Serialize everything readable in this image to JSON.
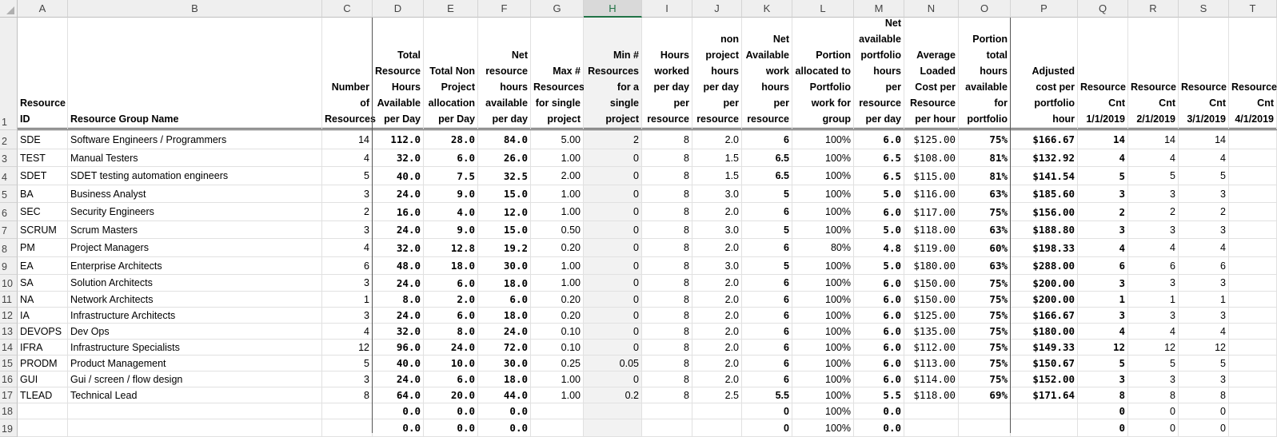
{
  "sheet": {
    "columns": [
      "A",
      "B",
      "C",
      "D",
      "E",
      "F",
      "G",
      "H",
      "I",
      "J",
      "K",
      "L",
      "M",
      "N",
      "O",
      "P",
      "Q",
      "R",
      "S",
      "T"
    ],
    "selected_column": "H",
    "header_row_number": "1",
    "headers": [
      "Resource ID",
      "Resource Group  Name",
      "Number of Resources",
      "Total Resource Hours Available per Day",
      "Total Non Project allocation per Day",
      "Net resource hours available per day",
      "Max # Resources for single project",
      "Min # Resources for a single project",
      "Hours worked per day per resource",
      "non project hours per day per resource",
      "Net Available work hours per resource",
      "Portion allocated to Portfolio work for group",
      "Net available portfolio hours per resource per day",
      "Average Loaded Cost per Resource per hour",
      "Portion total hours available for portfolio",
      "Adjusted cost per portfolio hour",
      "Resource Cnt 1/1/2019",
      "Resource Cnt 2/1/2019",
      "Resource Cnt 3/1/2019",
      "Resource Cnt 4/1/2019"
    ],
    "rows": [
      {
        "n": "2",
        "c": [
          "SDE",
          "Software Engineers / Programmers",
          "14",
          "112.0",
          "28.0",
          "84.0",
          "5.00",
          "2",
          "8",
          "2.0",
          "6",
          "100%",
          "6.0",
          "$125.00",
          "75%",
          "$166.67",
          "14",
          "14",
          "14",
          ""
        ]
      },
      {
        "n": "3",
        "c": [
          "TEST",
          "Manual Testers",
          "4",
          "32.0",
          "6.0",
          "26.0",
          "1.00",
          "0",
          "8",
          "1.5",
          "6.5",
          "100%",
          "6.5",
          "$108.00",
          "81%",
          "$132.92",
          "4",
          "4",
          "4",
          ""
        ]
      },
      {
        "n": "4",
        "c": [
          "SDET",
          "SDET testing automation engineers",
          "5",
          "40.0",
          "7.5",
          "32.5",
          "2.00",
          "0",
          "8",
          "1.5",
          "6.5",
          "100%",
          "6.5",
          "$115.00",
          "81%",
          "$141.54",
          "5",
          "5",
          "5",
          ""
        ]
      },
      {
        "n": "5",
        "c": [
          "BA",
          "Business Analyst",
          "3",
          "24.0",
          "9.0",
          "15.0",
          "1.00",
          "0",
          "8",
          "3.0",
          "5",
          "100%",
          "5.0",
          "$116.00",
          "63%",
          "$185.60",
          "3",
          "3",
          "3",
          ""
        ]
      },
      {
        "n": "6",
        "c": [
          "SEC",
          "Security Engineers",
          "2",
          "16.0",
          "4.0",
          "12.0",
          "1.00",
          "0",
          "8",
          "2.0",
          "6",
          "100%",
          "6.0",
          "$117.00",
          "75%",
          "$156.00",
          "2",
          "2",
          "2",
          ""
        ]
      },
      {
        "n": "7",
        "c": [
          "SCRUM",
          "Scrum Masters",
          "3",
          "24.0",
          "9.0",
          "15.0",
          "0.50",
          "0",
          "8",
          "3.0",
          "5",
          "100%",
          "5.0",
          "$118.00",
          "63%",
          "$188.80",
          "3",
          "3",
          "3",
          ""
        ]
      },
      {
        "n": "8",
        "c": [
          "PM",
          "Project Managers",
          "4",
          "32.0",
          "12.8",
          "19.2",
          "0.20",
          "0",
          "8",
          "2.0",
          "6",
          "80%",
          "4.8",
          "$119.00",
          "60%",
          "$198.33",
          "4",
          "4",
          "4",
          ""
        ]
      },
      {
        "n": "9",
        "c": [
          "EA",
          "Enterprise Architects",
          "6",
          "48.0",
          "18.0",
          "30.0",
          "1.00",
          "0",
          "8",
          "3.0",
          "5",
          "100%",
          "5.0",
          "$180.00",
          "63%",
          "$288.00",
          "6",
          "6",
          "6",
          ""
        ]
      },
      {
        "n": "10",
        "c": [
          "SA",
          "Solution Architects",
          "3",
          "24.0",
          "6.0",
          "18.0",
          "1.00",
          "0",
          "8",
          "2.0",
          "6",
          "100%",
          "6.0",
          "$150.00",
          "75%",
          "$200.00",
          "3",
          "3",
          "3",
          ""
        ]
      },
      {
        "n": "11",
        "c": [
          "NA",
          "Network Architects",
          "1",
          "8.0",
          "2.0",
          "6.0",
          "0.20",
          "0",
          "8",
          "2.0",
          "6",
          "100%",
          "6.0",
          "$150.00",
          "75%",
          "$200.00",
          "1",
          "1",
          "1",
          ""
        ]
      },
      {
        "n": "12",
        "c": [
          "IA",
          "Infrastructure Architects",
          "3",
          "24.0",
          "6.0",
          "18.0",
          "0.20",
          "0",
          "8",
          "2.0",
          "6",
          "100%",
          "6.0",
          "$125.00",
          "75%",
          "$166.67",
          "3",
          "3",
          "3",
          ""
        ]
      },
      {
        "n": "13",
        "c": [
          "DEVOPS",
          "Dev Ops",
          "4",
          "32.0",
          "8.0",
          "24.0",
          "0.10",
          "0",
          "8",
          "2.0",
          "6",
          "100%",
          "6.0",
          "$135.00",
          "75%",
          "$180.00",
          "4",
          "4",
          "4",
          ""
        ]
      },
      {
        "n": "14",
        "c": [
          "IFRA",
          "Infrastructure Specialists",
          "12",
          "96.0",
          "24.0",
          "72.0",
          "0.10",
          "0",
          "8",
          "2.0",
          "6",
          "100%",
          "6.0",
          "$112.00",
          "75%",
          "$149.33",
          "12",
          "12",
          "12",
          ""
        ]
      },
      {
        "n": "15",
        "c": [
          "PRODM",
          "Product Management",
          "5",
          "40.0",
          "10.0",
          "30.0",
          "0.25",
          "0.05",
          "8",
          "2.0",
          "6",
          "100%",
          "6.0",
          "$113.00",
          "75%",
          "$150.67",
          "5",
          "5",
          "5",
          ""
        ]
      },
      {
        "n": "16",
        "c": [
          "GUI",
          "Gui / screen / flow design",
          "3",
          "24.0",
          "6.0",
          "18.0",
          "1.00",
          "0",
          "8",
          "2.0",
          "6",
          "100%",
          "6.0",
          "$114.00",
          "75%",
          "$152.00",
          "3",
          "3",
          "3",
          ""
        ]
      },
      {
        "n": "17",
        "c": [
          "TLEAD",
          "Technical Lead",
          "8",
          "64.0",
          "20.0",
          "44.0",
          "1.00",
          "0.2",
          "8",
          "2.5",
          "5.5",
          "100%",
          "5.5",
          "$118.00",
          "69%",
          "$171.64",
          "8",
          "8",
          "8",
          ""
        ]
      },
      {
        "n": "18",
        "c": [
          "",
          "",
          "",
          "0.0",
          "0.0",
          "0.0",
          "",
          "",
          "",
          "",
          "0",
          "100%",
          "0.0",
          "",
          "",
          "",
          "0",
          "0",
          "0",
          ""
        ]
      },
      {
        "n": "19",
        "c": [
          "",
          "",
          "",
          "0.0",
          "0.0",
          "0.0",
          "",
          "",
          "",
          "",
          "0",
          "100%",
          "0.0",
          "",
          "",
          "",
          "0",
          "0",
          "0",
          ""
        ]
      }
    ]
  }
}
